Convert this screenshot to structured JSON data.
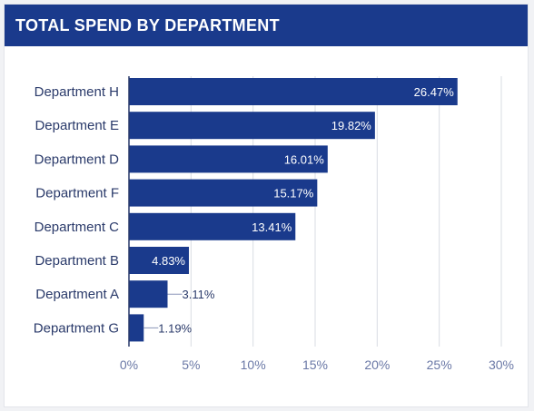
{
  "header": {
    "title": "TOTAL SPEND BY DEPARTMENT"
  },
  "colors": {
    "header_bg": "#1a3a8c",
    "bar": "#1a3a8c",
    "grid": "#d9dce3"
  },
  "chart_data": {
    "type": "bar",
    "orientation": "horizontal",
    "title": "TOTAL SPEND BY DEPARTMENT",
    "categories": [
      "Department H",
      "Department E",
      "Department D",
      "Department F",
      "Department C",
      "Department B",
      "Department A",
      "Department G"
    ],
    "values": [
      26.47,
      19.82,
      16.01,
      15.17,
      13.41,
      4.83,
      3.11,
      1.19
    ],
    "data_labels": [
      "26.47%",
      "19.82%",
      "16.01%",
      "15.17%",
      "13.41%",
      "4.83%",
      "3.11%",
      "1.19%"
    ],
    "xlim": [
      0,
      30
    ],
    "x_ticks": [
      0,
      5,
      10,
      15,
      20,
      25,
      30
    ],
    "x_tick_labels": [
      "0%",
      "5%",
      "10%",
      "15%",
      "20%",
      "25%",
      "30%"
    ],
    "grid": true,
    "legend": "none"
  }
}
